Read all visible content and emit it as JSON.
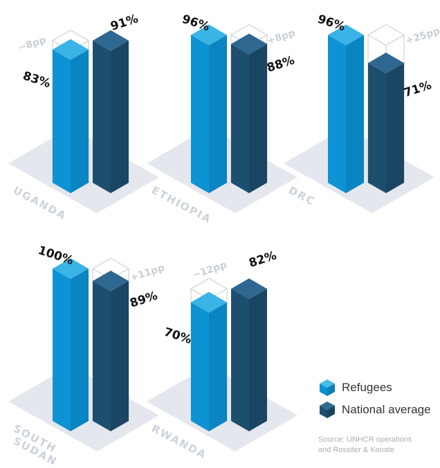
{
  "chart_data": {
    "type": "bar",
    "categories": [
      "UGANDA",
      "ETHIOPIA",
      "DRC",
      "SOUTH SUDAN",
      "RWANDA"
    ],
    "series": [
      {
        "name": "Refugees",
        "values": [
          83,
          96,
          96,
          100,
          70
        ],
        "labels": [
          "83%",
          "96%",
          "96%",
          "100%",
          "70%"
        ],
        "color": "#0d93d4"
      },
      {
        "name": "National average",
        "values": [
          91,
          88,
          71,
          89,
          82
        ],
        "labels": [
          "91%",
          "88%",
          "71%",
          "89%",
          "82%"
        ],
        "color": "#1e4e6e"
      }
    ],
    "differences": [
      "−8pp",
      "+8pp",
      "+25pp",
      "+11pp",
      "−12pp"
    ],
    "ylim": [
      0,
      100
    ]
  },
  "legend": {
    "refugees": "Refugees",
    "national": "National average"
  },
  "source": {
    "line1": "Source: UNHCR operations",
    "line2": "and Rossiter & Konate"
  },
  "colors": {
    "refugees": "#0d93d4",
    "national": "#1e4e6e",
    "shadow": "#e4e7ee",
    "label": "#cdd2db"
  }
}
